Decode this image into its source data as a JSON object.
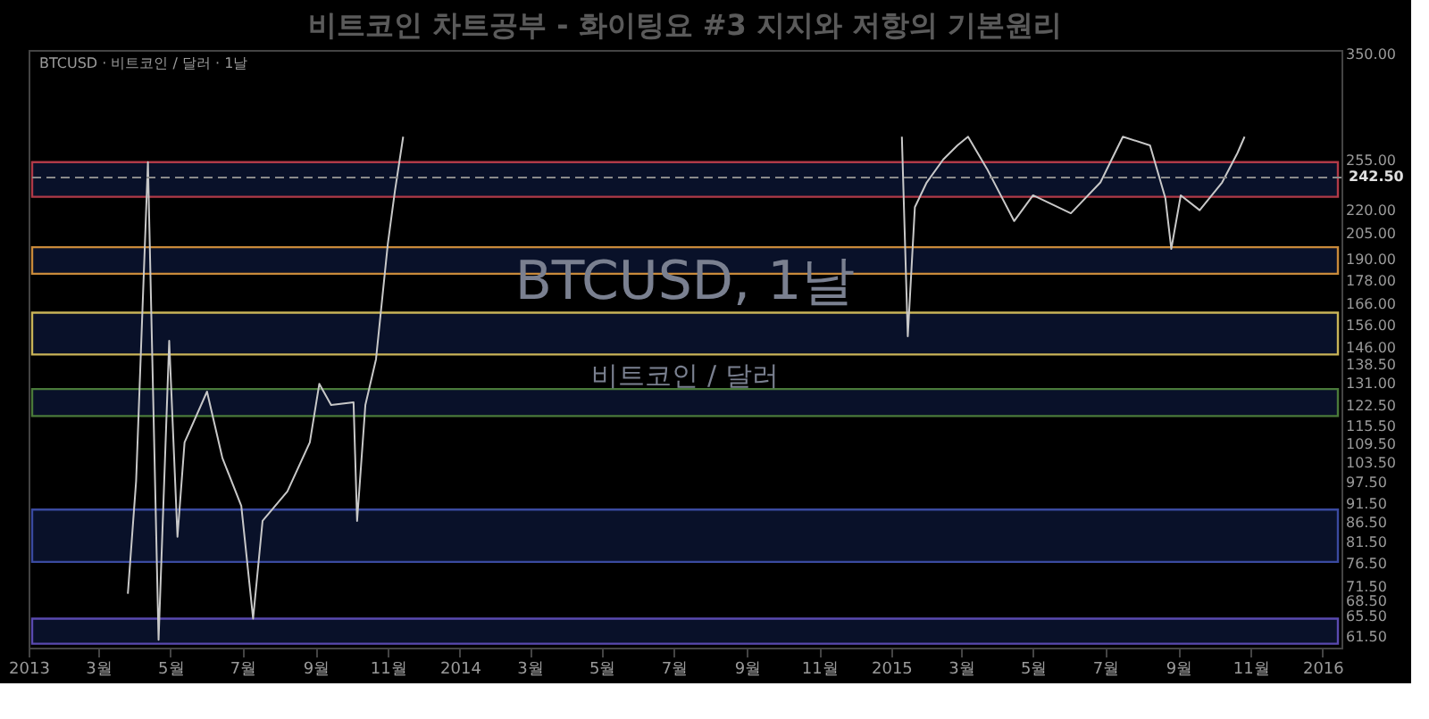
{
  "chart_data": {
    "type": "line",
    "title": "비트코인 차트공부 - 화이팅요 #3 지지와 저항의 기본원리",
    "annotations": [
      "BTCUSD · 비트코인 / 달러 · 1날",
      "BTCUSD, 1날",
      "비트코인 / 달러"
    ],
    "x": [
      "2013-03-26",
      "2013-04-02",
      "2013-04-12",
      "2013-04-21",
      "2013-04-30",
      "2013-05-07",
      "2013-05-13",
      "2013-06-01",
      "2013-06-14",
      "2013-06-30",
      "2013-07-10",
      "2013-07-18",
      "2013-08-08",
      "2013-08-27",
      "2013-09-04",
      "2013-09-14",
      "2013-10-03",
      "2013-10-06",
      "2013-10-13",
      "2013-10-22",
      "2013-11-01",
      "2013-11-07",
      "2013-11-14",
      "2014-06-01",
      "2015-01-10",
      "2015-01-15",
      "2015-01-21",
      "2015-01-31",
      "2015-02-14",
      "2015-02-26",
      "2015-03-07",
      "2015-03-23",
      "2015-04-15",
      "2015-05-01",
      "2015-06-02",
      "2015-06-27",
      "2015-07-16",
      "2015-08-08",
      "2015-08-21",
      "2015-08-26",
      "2015-09-03",
      "2015-09-19",
      "2015-10-08",
      "2015-10-21",
      "2015-10-27"
    ],
    "series": [
      {
        "color": "#c8c8c8",
        "values": [
          70,
          98,
          254,
          61,
          149,
          83,
          110,
          128,
          105,
          91,
          65,
          87,
          95,
          110,
          131,
          123,
          124,
          87,
          123,
          141,
          199,
          233,
          274,
          null,
          274,
          151,
          222,
          239,
          256,
          267,
          274,
          249,
          213,
          230,
          218,
          239,
          274,
          267,
          228,
          196,
          230,
          220,
          239,
          261,
          274
        ]
      }
    ],
    "log": "y",
    "xlim": [
      "2013-01-01",
      "2016-01-17"
    ],
    "xticks": [
      {
        "value": "2013-01-01",
        "label": "2013"
      },
      {
        "value": "2013-03-01",
        "label": "3월"
      },
      {
        "value": "2013-05-01",
        "label": "5월"
      },
      {
        "value": "2013-07-01",
        "label": "7월"
      },
      {
        "value": "2013-09-01",
        "label": "9월"
      },
      {
        "value": "2013-11-01",
        "label": "11월"
      },
      {
        "value": "2014-01-01",
        "label": "2014"
      },
      {
        "value": "2014-03-01",
        "label": "3월"
      },
      {
        "value": "2014-05-01",
        "label": "5월"
      },
      {
        "value": "2014-07-01",
        "label": "7월"
      },
      {
        "value": "2014-09-01",
        "label": "9월"
      },
      {
        "value": "2014-11-01",
        "label": "11월"
      },
      {
        "value": "2015-01-01",
        "label": "2015"
      },
      {
        "value": "2015-03-01",
        "label": "3월"
      },
      {
        "value": "2015-05-01",
        "label": "5월"
      },
      {
        "value": "2015-07-01",
        "label": "7월"
      },
      {
        "value": "2015-09-01",
        "label": "9월"
      },
      {
        "value": "2015-11-01",
        "label": "11월"
      },
      {
        "value": "2016-01-01",
        "label": "2016"
      }
    ],
    "ylim": [
      59.6,
      355
    ],
    "yticks": [
      {
        "value": 350,
        "label": "350.00"
      },
      {
        "value": 255,
        "label": "255.00"
      },
      {
        "value": 220,
        "label": "220.00"
      },
      {
        "value": 205,
        "label": "205.00"
      },
      {
        "value": 190,
        "label": "190.00"
      },
      {
        "value": 178,
        "label": "178.00"
      },
      {
        "value": 166,
        "label": "166.00"
      },
      {
        "value": 156,
        "label": "156.00"
      },
      {
        "value": 146,
        "label": "146.00"
      },
      {
        "value": 138.5,
        "label": "138.50"
      },
      {
        "value": 131,
        "label": "131.00"
      },
      {
        "value": 122.5,
        "label": "122.50"
      },
      {
        "value": 115.5,
        "label": "115.50"
      },
      {
        "value": 109.5,
        "label": "109.50"
      },
      {
        "value": 103.5,
        "label": "103.50"
      },
      {
        "value": 97.5,
        "label": "97.50"
      },
      {
        "value": 91.5,
        "label": "91.50"
      },
      {
        "value": 86.5,
        "label": "86.50"
      },
      {
        "value": 81.5,
        "label": "81.50"
      },
      {
        "value": 76.5,
        "label": "76.50"
      },
      {
        "value": 71.5,
        "label": "71.50"
      },
      {
        "value": 68.5,
        "label": "68.50"
      },
      {
        "value": 65.5,
        "label": "65.50"
      },
      {
        "value": 61.5,
        "label": "61.50"
      }
    ],
    "ref_lines": [
      {
        "axis": "y",
        "value": 242.5,
        "label": "242.50",
        "color": "#8a8a8a",
        "line_style": "dashed"
      }
    ],
    "bands": [
      {
        "axis": "y",
        "from": 229,
        "to": 254,
        "color": "#b03a48"
      },
      {
        "axis": "y",
        "from": 182,
        "to": 197,
        "color": "#c98a3a"
      },
      {
        "axis": "y",
        "from": 143,
        "to": 162,
        "color": "#c9b458"
      },
      {
        "axis": "y",
        "from": 119,
        "to": 129,
        "color": "#4a7a3a"
      },
      {
        "axis": "y",
        "from": 77,
        "to": 90,
        "color": "#3a4aa0"
      },
      {
        "axis": "y",
        "from": 60.3,
        "to": 65,
        "color": "#5a4ab0"
      }
    ],
    "grid": false,
    "marker": "none",
    "line_style": "solid"
  }
}
